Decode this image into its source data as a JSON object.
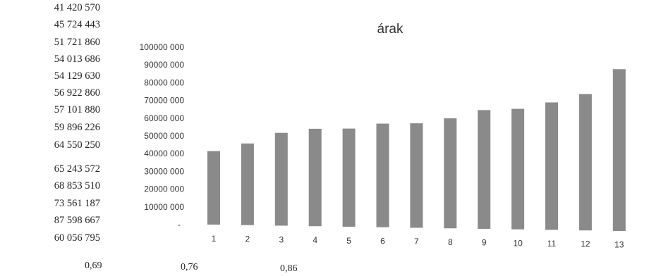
{
  "side_values": [
    "41 420 570",
    "45 724 443",
    "51 721 860",
    "54 013 686",
    "54 129 630",
    "56 922 860",
    "57 101 880",
    "59 896 226",
    "64 550 250",
    "65 243 572",
    "68 853 510",
    "73 561 187",
    "87 598 667",
    "60 056 795"
  ],
  "footer_values": [
    "0,69",
    "0,76",
    "0,86"
  ],
  "chart_data": {
    "type": "bar",
    "title": "árak",
    "categories": [
      "1",
      "2",
      "3",
      "4",
      "5",
      "6",
      "7",
      "8",
      "9",
      "10",
      "11",
      "12",
      "13"
    ],
    "values": [
      41420570,
      45724443,
      51721860,
      54013686,
      54129630,
      56922860,
      57101880,
      59896226,
      64550250,
      65243572,
      68853510,
      73561187,
      87598667
    ],
    "ylim": [
      0,
      100000000
    ],
    "y_tick_labels": [
      "-",
      "10000 000",
      "20000 000",
      "30000 000",
      "40000 000",
      "50000 000",
      "60000 000",
      "70000 000",
      "80000 000",
      "90000 000",
      "100000 000"
    ],
    "bar_color": "#8a8a8a",
    "grid": false,
    "legend": "none"
  }
}
